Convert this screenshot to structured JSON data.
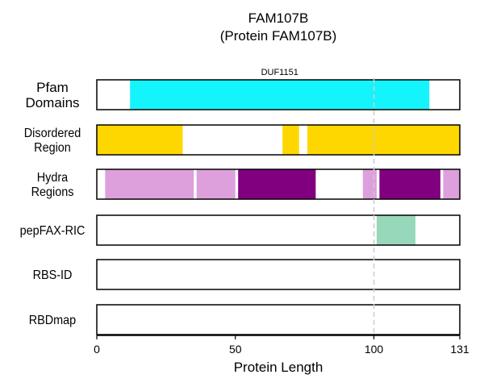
{
  "chart_data": {
    "type": "bar",
    "title": "FAM107B",
    "subtitle": "(Protein FAM107B)",
    "xlabel": "Protein Length",
    "xlim": [
      0,
      131
    ],
    "xticks": [
      0,
      50,
      100,
      131
    ],
    "reference_line_x": 100,
    "tracks": [
      {
        "label": [
          "Pfam",
          "Domains"
        ],
        "segments": [
          {
            "start": 12,
            "end": 120,
            "color": "#14F4FC",
            "label": "DUF1151"
          }
        ]
      },
      {
        "label": [
          "Disordered",
          "Region"
        ],
        "segments": [
          {
            "start": 0,
            "end": 31,
            "color": "#FFD700"
          },
          {
            "start": 67,
            "end": 73,
            "color": "#FFD700"
          },
          {
            "start": 76,
            "end": 131,
            "color": "#FFD700"
          }
        ]
      },
      {
        "label": [
          "Hydra",
          "Regions"
        ],
        "segments": [
          {
            "start": 3,
            "end": 35,
            "color": "#DDA0DD"
          },
          {
            "start": 36,
            "end": 50,
            "color": "#DDA0DD"
          },
          {
            "start": 51,
            "end": 79,
            "color": "#800080"
          },
          {
            "start": 96,
            "end": 101,
            "color": "#DDA0DD"
          },
          {
            "start": 102,
            "end": 124,
            "color": "#800080"
          },
          {
            "start": 125,
            "end": 131,
            "color": "#DDA0DD"
          }
        ]
      },
      {
        "label": [
          "pepFAX-RIC"
        ],
        "segments": [
          {
            "start": 101,
            "end": 115,
            "color": "#98D8BA"
          }
        ]
      },
      {
        "label": [
          "RBS-ID"
        ],
        "segments": []
      },
      {
        "label": [
          "RBDmap"
        ],
        "segments": []
      }
    ]
  }
}
